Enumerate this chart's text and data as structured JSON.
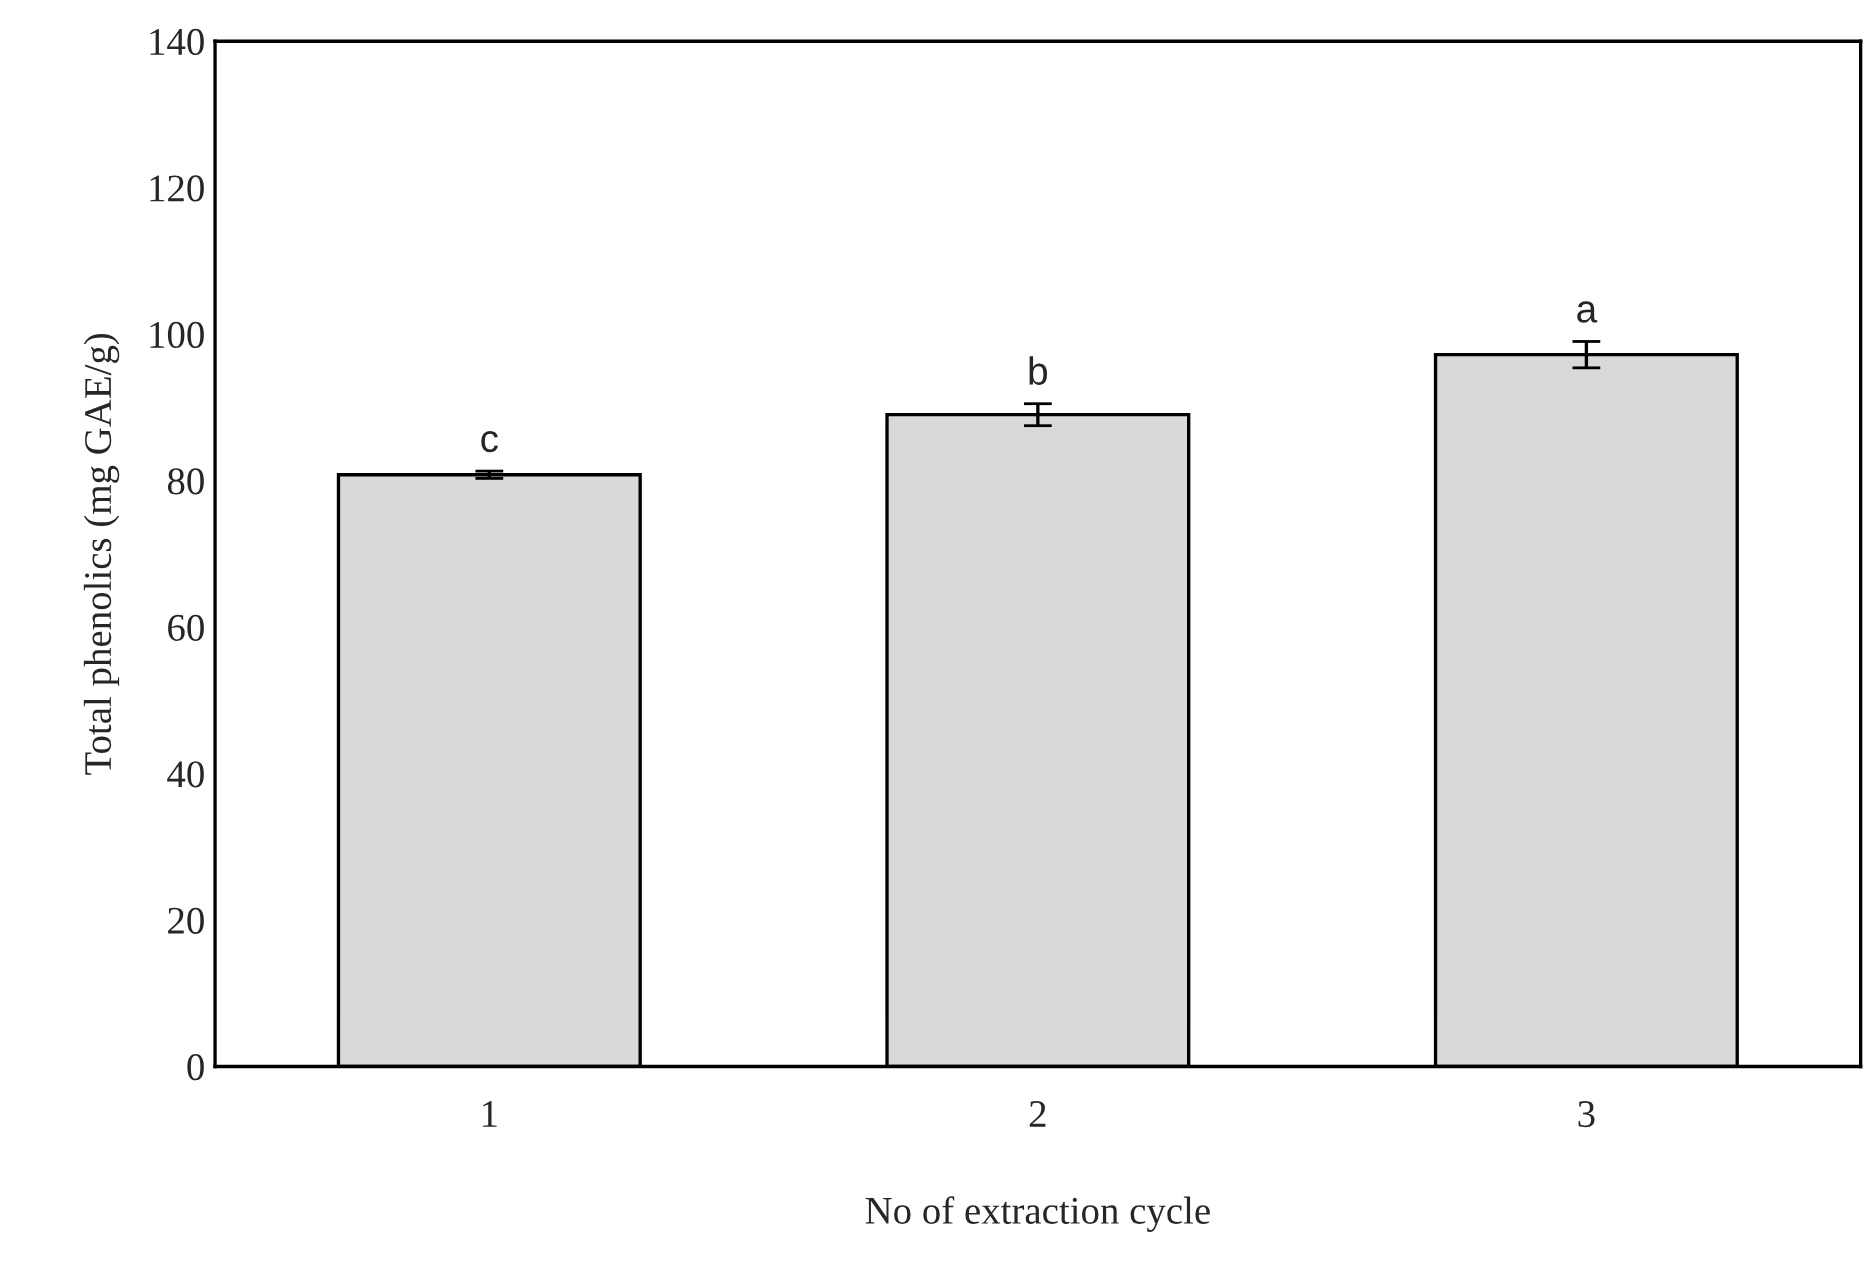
{
  "chart_data": {
    "type": "bar",
    "xlabel": "No of extraction cycle",
    "ylabel": "Total phenolics (mg GAE/g)",
    "categories": [
      "1",
      "2",
      "3"
    ],
    "values": [
      80.8,
      89.0,
      97.2
    ],
    "errors": [
      0.5,
      1.5,
      1.8
    ],
    "color": "#d9d9d9",
    "ylim": [
      0,
      140
    ],
    "yticks": [
      0,
      20,
      40,
      60,
      80,
      100,
      120,
      140
    ],
    "grid": false,
    "annotations": [
      {
        "text": "c",
        "x": "1",
        "y": 81.3
      },
      {
        "text": "b",
        "x": "2",
        "y": 90.5
      },
      {
        "text": "a",
        "x": "3",
        "y": 99.0
      }
    ]
  }
}
